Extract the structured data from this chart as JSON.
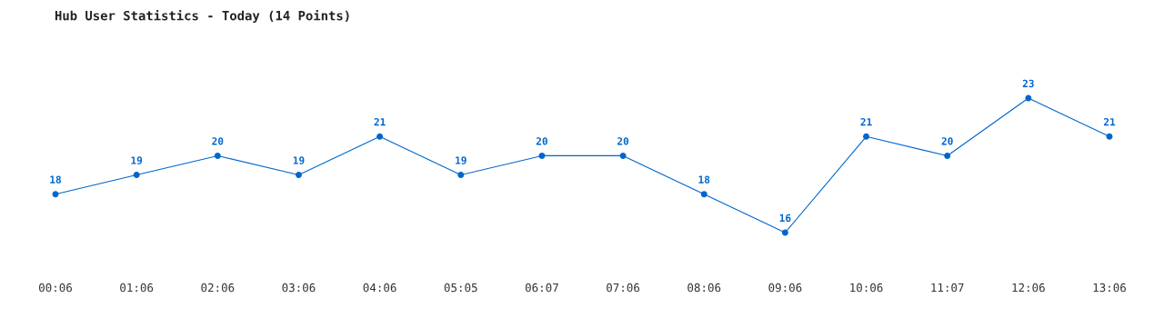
{
  "chart_data": {
    "type": "line",
    "title": "Hub User Statistics - Today (14 Points)",
    "categories": [
      "00:06",
      "01:06",
      "02:06",
      "03:06",
      "04:06",
      "05:05",
      "06:07",
      "07:06",
      "08:06",
      "09:06",
      "10:06",
      "11:07",
      "12:06",
      "13:06"
    ],
    "series": [
      {
        "color": "#0066cc",
        "values": [
          18,
          19,
          20,
          19,
          21,
          19,
          20,
          20,
          18,
          16,
          21,
          20,
          23,
          21
        ]
      }
    ],
    "data_labels": true,
    "marker": "circle",
    "line_style": "solid",
    "grid": false,
    "legend": false
  }
}
